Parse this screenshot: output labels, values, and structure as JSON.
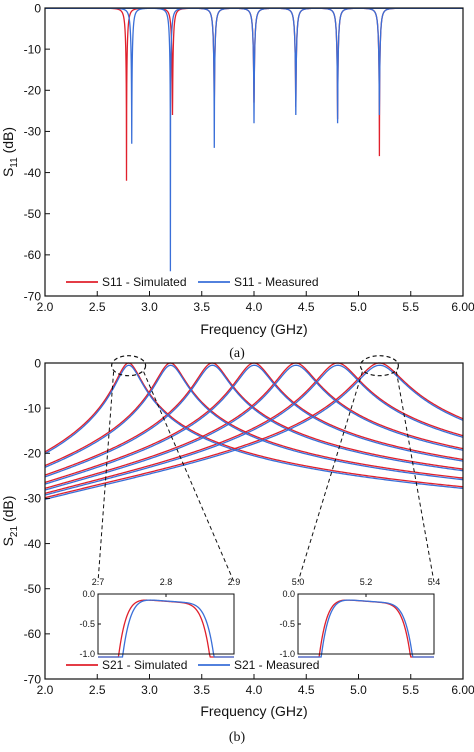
{
  "colors": {
    "simulated": "#e0202c",
    "measured": "#3a6fd8",
    "axis": "#111111",
    "zoom_box": "#111111"
  },
  "chart_data": [
    {
      "id": "a",
      "type": "line",
      "caption": "(a)",
      "xlabel": "Frequency (GHz)",
      "ylabel_main": "S",
      "ylabel_sub": "11",
      "ylabel_unit": " (dB)",
      "xlim": [
        2.0,
        6.0
      ],
      "ylim": [
        -70,
        0
      ],
      "xticks": [
        2.0,
        2.5,
        3.0,
        3.5,
        4.0,
        4.5,
        5.0,
        5.5,
        6.0
      ],
      "xtick_labels": [
        "2.0",
        "2.5",
        "3.0",
        "3.5",
        "4.0",
        "4.5",
        "5.0",
        "5.5",
        "6.00"
      ],
      "yticks": [
        0,
        -10,
        -20,
        -30,
        -40,
        -50,
        -60,
        -70
      ],
      "ytick_labels": [
        "0",
        "-10",
        "-20",
        "-30",
        "-40",
        "-50",
        "-60",
        "-70"
      ],
      "grid": false,
      "legend_position": "bottom-left",
      "series": [
        {
          "name": "S11 - Simulated",
          "color_key": "simulated",
          "resonances": [
            {
              "f0": 2.78,
              "depth": -42
            },
            {
              "f0": 3.22,
              "depth": -26
            },
            {
              "f0": 3.62,
              "depth": -23
            },
            {
              "f0": 4.0,
              "depth": -23
            },
            {
              "f0": 4.4,
              "depth": -24
            },
            {
              "f0": 4.8,
              "depth": -27
            },
            {
              "f0": 5.2,
              "depth": -36
            }
          ]
        },
        {
          "name": "S11 - Measured",
          "color_key": "measured",
          "resonances": [
            {
              "f0": 2.83,
              "depth": -33
            },
            {
              "f0": 3.2,
              "depth": -64
            },
            {
              "f0": 3.62,
              "depth": -34
            },
            {
              "f0": 4.0,
              "depth": -28
            },
            {
              "f0": 4.4,
              "depth": -26
            },
            {
              "f0": 4.8,
              "depth": -28
            },
            {
              "f0": 5.2,
              "depth": -26
            }
          ]
        }
      ]
    },
    {
      "id": "b",
      "type": "line",
      "caption": "(b)",
      "xlabel": "Frequency (GHz)",
      "ylabel_main": "S",
      "ylabel_sub": "21",
      "ylabel_unit": " (dB)",
      "xlim": [
        2.0,
        6.0
      ],
      "ylim": [
        -70,
        0
      ],
      "xticks": [
        2.0,
        2.5,
        3.0,
        3.5,
        4.0,
        4.5,
        5.0,
        5.5,
        6.0
      ],
      "xtick_labels": [
        "2.0",
        "2.5",
        "3.0",
        "3.5",
        "4.0",
        "4.5",
        "5.0",
        "5.5",
        "6.00"
      ],
      "yticks": [
        0,
        -10,
        -20,
        -30,
        -40,
        -50,
        -60,
        -70
      ],
      "ytick_labels": [
        "0",
        "-10",
        "-20",
        "-30",
        "-40",
        "-50",
        "-60",
        "-70"
      ],
      "grid": false,
      "legend_position": "bottom-left",
      "center_frequencies": [
        2.8,
        3.2,
        3.6,
        4.0,
        4.4,
        4.8,
        5.2
      ],
      "series": [
        {
          "name": "S21 - Simulated",
          "color_key": "simulated"
        },
        {
          "name": "S21 - Measured",
          "color_key": "measured"
        }
      ],
      "insets": [
        {
          "xlim": [
            2.7,
            2.9
          ],
          "ylim": [
            -1.0,
            0.0
          ],
          "xticks": [
            2.7,
            2.8,
            2.9
          ],
          "xtick_labels": [
            "2.7",
            "2.8",
            "2.9"
          ],
          "yticks": [
            0.0,
            -0.5,
            -1.0
          ],
          "ytick_labels": [
            "0.0",
            "-0.5",
            "-1.0"
          ],
          "center": 2.8
        },
        {
          "xlim": [
            5.0,
            5.4
          ],
          "ylim": [
            -1.0,
            0.0
          ],
          "xticks": [
            5.0,
            5.2,
            5.4
          ],
          "xtick_labels": [
            "5.0",
            "5.2",
            "5.4"
          ],
          "yticks": [
            0.0,
            -0.5,
            -1.0
          ],
          "ytick_labels": [
            "0.0",
            "-0.5",
            "-1.0"
          ],
          "center": 5.2
        }
      ]
    }
  ]
}
